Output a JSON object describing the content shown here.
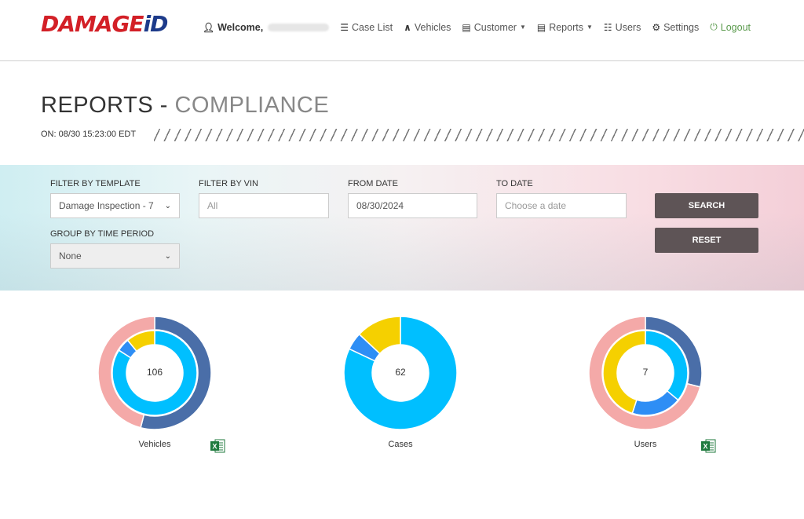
{
  "brand": {
    "logo_part1": "DAMAGE",
    "logo_part2": "iD"
  },
  "nav": {
    "welcome": "Welcome,",
    "case_list": "Case List",
    "vehicles": "Vehicles",
    "customer": "Customer",
    "reports": "Reports",
    "users": "Users",
    "settings": "Settings",
    "logout": "Logout"
  },
  "page": {
    "title_main": "REPORTS - ",
    "title_sub": "COMPLIANCE",
    "timestamp": "ON: 08/30 15:23:00 EDT"
  },
  "filters": {
    "template_label": "FILTER BY TEMPLATE",
    "template_value": "Damage Inspection - 7",
    "vin_label": "FILTER BY VIN",
    "vin_placeholder": "All",
    "from_label": "FROM DATE",
    "from_value": "08/30/2024",
    "to_label": "TO DATE",
    "to_placeholder": "Choose a date",
    "group_label": "GROUP BY TIME PERIOD",
    "group_value": "None",
    "search_button": "SEARCH",
    "reset_button": "RESET"
  },
  "colors": {
    "navy": "#4a6ea8",
    "cyan": "#00bfff",
    "blue": "#2e8ef5",
    "yellow": "#f5d000",
    "pink": "#f4a9a8",
    "button": "#5e5456",
    "logo_red": "#d32027",
    "logo_blue": "#1d3b8a"
  },
  "chart_data": [
    {
      "type": "donut",
      "name": "Vehicles",
      "center_value": "106",
      "outer": [
        {
          "value": 0.54,
          "color": "#4a6ea8"
        },
        {
          "value": 0.46,
          "color": "#f4a9a8"
        }
      ],
      "inner": [
        {
          "value": 0.84,
          "color": "#00bfff"
        },
        {
          "value": 0.05,
          "color": "#2e8ef5"
        },
        {
          "value": 0.11,
          "color": "#f5d000"
        }
      ],
      "export": true
    },
    {
      "type": "donut",
      "name": "Cases",
      "center_value": "62",
      "outer": [
        {
          "value": 0.82,
          "color": "#00bfff"
        },
        {
          "value": 0.05,
          "color": "#2e8ef5"
        },
        {
          "value": 0.13,
          "color": "#f5d000"
        }
      ],
      "inner": [],
      "export": false
    },
    {
      "type": "donut",
      "name": "Users",
      "center_value": "7",
      "outer": [
        {
          "value": 0.29,
          "color": "#4a6ea8"
        },
        {
          "value": 0.71,
          "color": "#f4a9a8"
        }
      ],
      "inner": [
        {
          "value": 0.36,
          "color": "#00bfff"
        },
        {
          "value": 0.19,
          "color": "#2e8ef5"
        },
        {
          "value": 0.45,
          "color": "#f5d000"
        }
      ],
      "export": true
    }
  ]
}
